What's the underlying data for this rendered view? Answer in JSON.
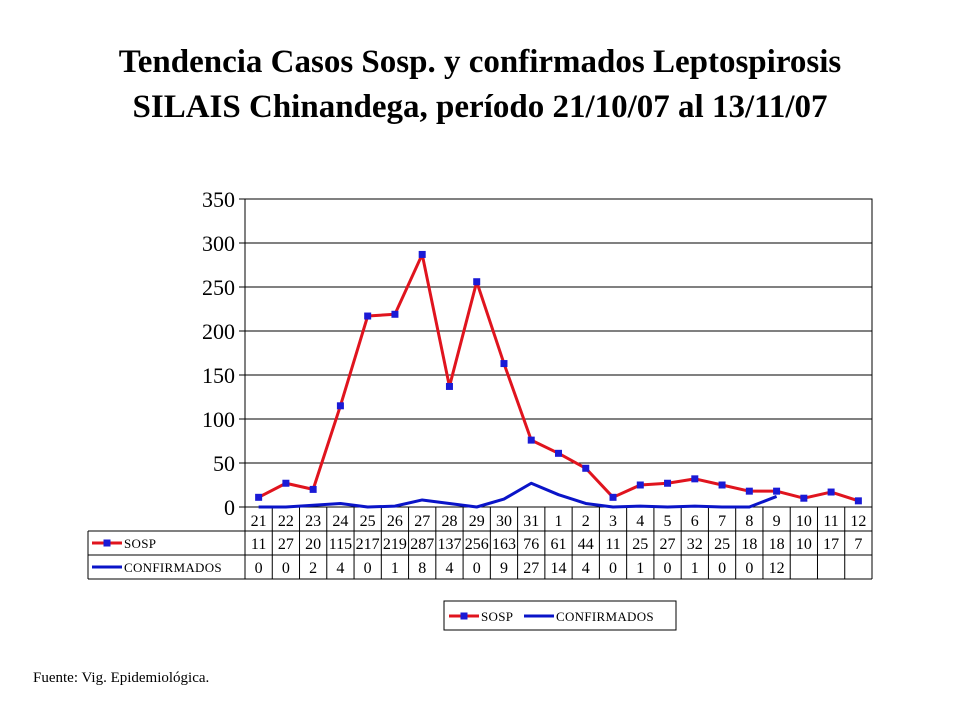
{
  "title": "Tendencia Casos Sosp. y confirmados Leptospirosis SILAIS Chinandega, período 21/10/07 al 13/11/07",
  "source": "Fuente: Vig. Epidemiológica.",
  "colors": {
    "sosp": "#e0141e",
    "sosp_marker": "#1a1ad6",
    "confirmados": "#0a14c8"
  },
  "chart_data": {
    "type": "line",
    "title": "Tendencia Casos Sosp. y confirmados Leptospirosis SILAIS Chinandega, período 21/10/07 al 13/11/07",
    "xlabel": "",
    "ylabel": "",
    "ylim": [
      0,
      350
    ],
    "yticks": [
      "0",
      "50",
      "100",
      "150",
      "200",
      "250",
      "300",
      "350"
    ],
    "yticks_values": [
      0,
      50,
      100,
      150,
      200,
      250,
      300,
      350
    ],
    "grid": true,
    "legend_position": "bottom",
    "categories": [
      "21",
      "22",
      "23",
      "24",
      "25",
      "26",
      "27",
      "28",
      "29",
      "30",
      "31",
      "1",
      "2",
      "3",
      "4",
      "5",
      "6",
      "7",
      "8",
      "9",
      "10",
      "11",
      "12"
    ],
    "series": [
      {
        "name": "SOSP",
        "marker": "square",
        "values": [
          11,
          27,
          20,
          115,
          217,
          219,
          287,
          137,
          256,
          163,
          76,
          61,
          44,
          11,
          25,
          27,
          32,
          25,
          18,
          18,
          10,
          17,
          7
        ],
        "labels": [
          "11",
          "27",
          "20",
          "115",
          "217",
          "219",
          "287",
          "137",
          "256",
          "163",
          "76",
          "61",
          "44",
          "11",
          "25",
          "27",
          "32",
          "25",
          "18",
          "18",
          "10",
          "17",
          "7"
        ]
      },
      {
        "name": "CONFIRMADOS",
        "marker": "none",
        "values": [
          0,
          0,
          2,
          4,
          0,
          1,
          8,
          4,
          0,
          9,
          27,
          14,
          4,
          0,
          1,
          0,
          1,
          0,
          0,
          12,
          null,
          null,
          null
        ],
        "labels": [
          "0",
          "0",
          "2",
          "4",
          "0",
          "1",
          "8",
          "4",
          "0",
          "9",
          "27",
          "14",
          "4",
          "0",
          "1",
          "0",
          "1",
          "0",
          "0",
          "12",
          "",
          "",
          ""
        ]
      }
    ]
  }
}
